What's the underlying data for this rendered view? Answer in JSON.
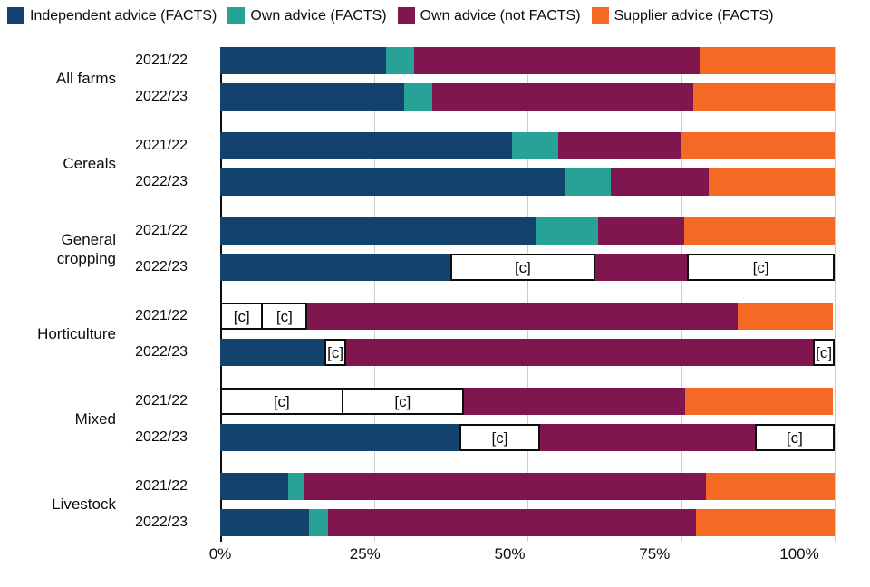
{
  "colors": {
    "text": "#0b0c0c",
    "gridline": "#cccccc",
    "axis_line": "#0b0c0c",
    "suppressed_box_bg": "#ffffff",
    "suppressed_box_border": "#0b0c0c"
  },
  "chart_data": {
    "type": "bar",
    "orientation": "horizontal",
    "stacked": true,
    "unit": "percent",
    "legend_position": "top",
    "grid": true,
    "xlim": [
      0,
      100
    ],
    "x_ticks": [
      "0%",
      "25%",
      "50%",
      "75%",
      "100%"
    ],
    "suppressed_marker": "[c]",
    "series": [
      {
        "name": "Independent advice (FACTS)",
        "color": "#12436D"
      },
      {
        "name": "Own advice (FACTS)",
        "color": "#28A197"
      },
      {
        "name": "Own advice (not FACTS)",
        "color": "#801650"
      },
      {
        "name": "Supplier advice (FACTS)",
        "color": "#F46A25"
      }
    ],
    "groups": [
      {
        "category": "All farms",
        "rows": [
          {
            "year": "2021/22",
            "values": [
              27,
              4.5,
              46.5,
              22
            ],
            "suppressed": [
              false,
              false,
              false,
              false
            ]
          },
          {
            "year": "2022/23",
            "values": [
              30,
              4.5,
              42.5,
              23
            ],
            "suppressed": [
              false,
              false,
              false,
              false
            ]
          }
        ]
      },
      {
        "category": "Cereals",
        "rows": [
          {
            "year": "2021/22",
            "values": [
              47.5,
              7.5,
              20,
              25
            ],
            "suppressed": [
              false,
              false,
              false,
              false
            ]
          },
          {
            "year": "2022/23",
            "values": [
              56,
              7.5,
              16,
              20.5
            ],
            "suppressed": [
              false,
              false,
              false,
              false
            ]
          }
        ]
      },
      {
        "category": "General cropping",
        "rows": [
          {
            "year": "2021/22",
            "values": [
              51.5,
              10,
              14,
              24.5
            ],
            "suppressed": [
              false,
              false,
              false,
              false
            ]
          },
          {
            "year": "2022/23",
            "values": [
              37.5,
              23.5,
              15,
              24
            ],
            "suppressed": [
              false,
              true,
              false,
              true
            ]
          }
        ]
      },
      {
        "category": "Horticulture",
        "rows": [
          {
            "year": "2021/22",
            "values": [
              7,
              7.5,
              70,
              15.5
            ],
            "suppressed": [
              true,
              true,
              false,
              false
            ]
          },
          {
            "year": "2022/23",
            "values": [
              17,
              3.5,
              76,
              3.5
            ],
            "suppressed": [
              false,
              true,
              false,
              true
            ]
          }
        ]
      },
      {
        "category": "Mixed",
        "rows": [
          {
            "year": "2021/22",
            "values": [
              20,
              20,
              36,
              24
            ],
            "suppressed": [
              true,
              true,
              false,
              false
            ]
          },
          {
            "year": "2022/23",
            "values": [
              39,
              13,
              35,
              13
            ],
            "suppressed": [
              false,
              true,
              false,
              true
            ]
          }
        ]
      },
      {
        "category": "Livestock",
        "rows": [
          {
            "year": "2021/22",
            "values": [
              11,
              2.5,
              65.5,
              21
            ],
            "suppressed": [
              false,
              false,
              false,
              false
            ]
          },
          {
            "year": "2022/23",
            "values": [
              14.5,
              3,
              60,
              22.5
            ],
            "suppressed": [
              false,
              false,
              false,
              false
            ]
          }
        ]
      }
    ]
  }
}
